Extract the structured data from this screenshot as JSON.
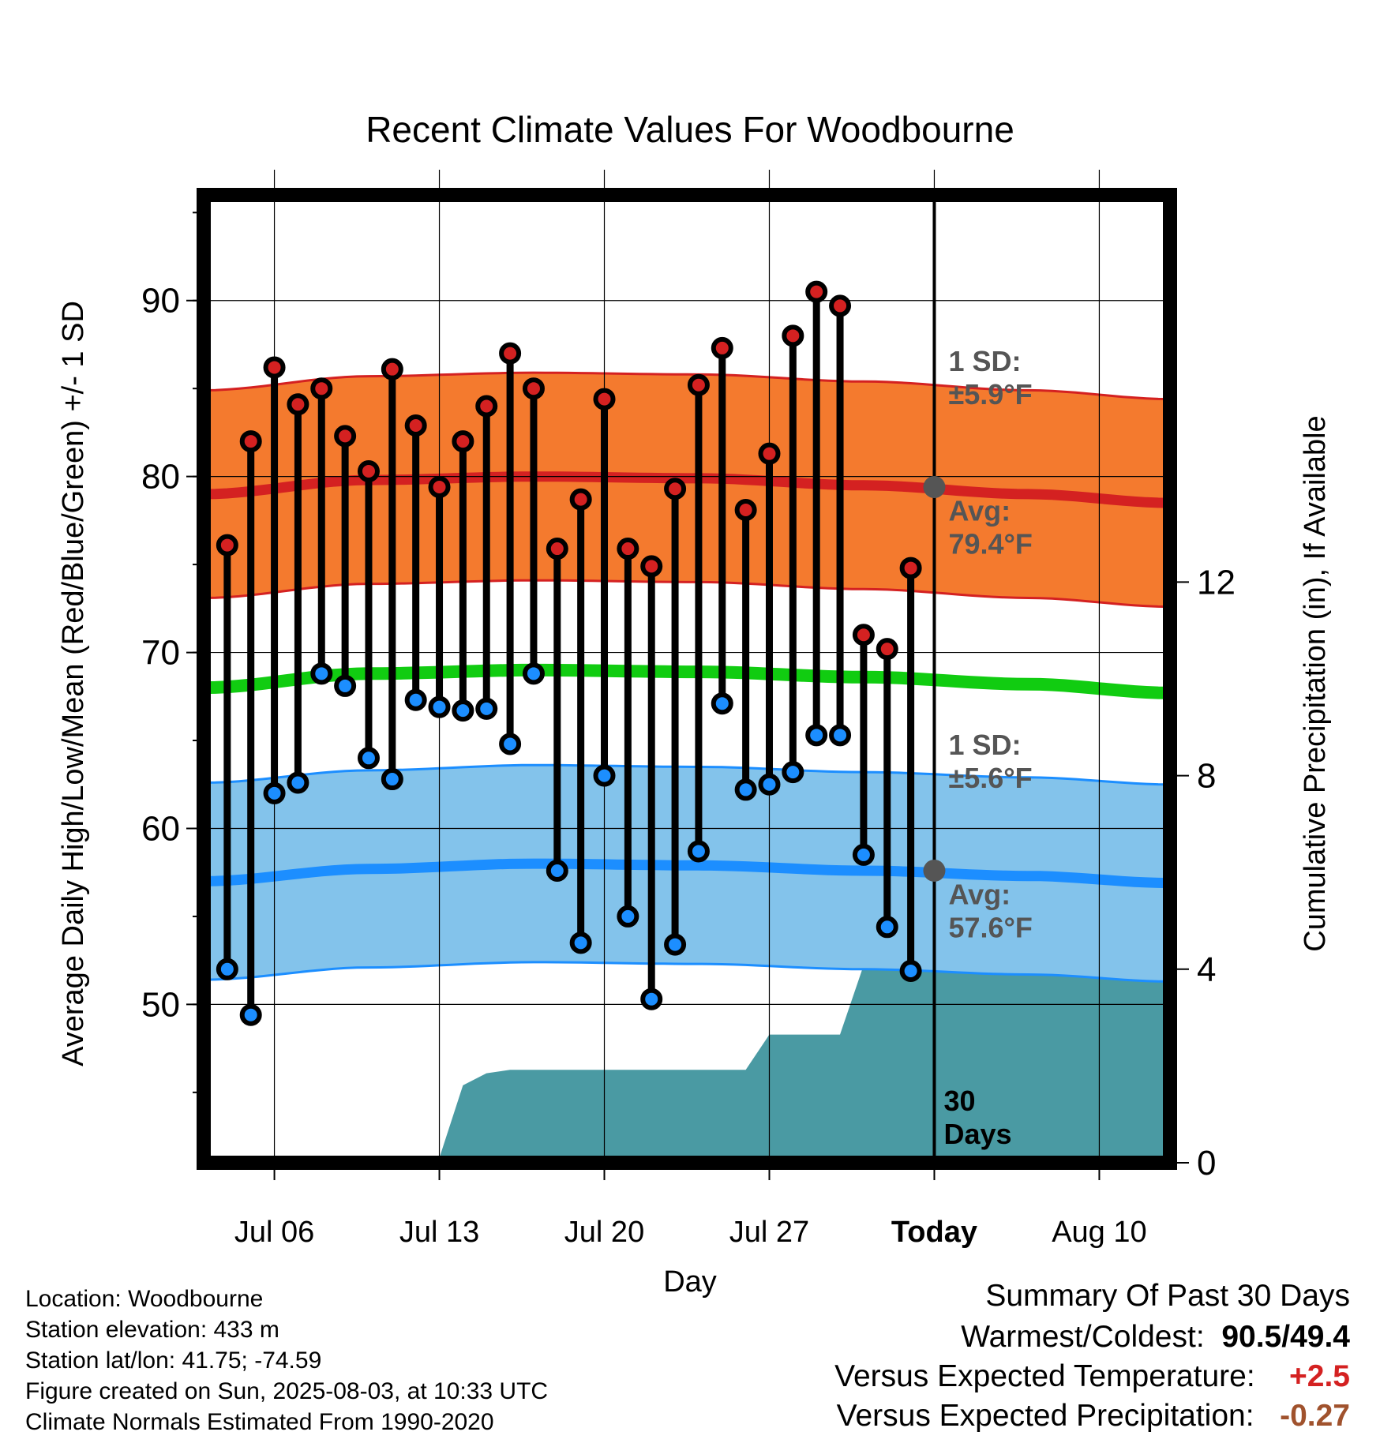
{
  "chart_data": {
    "type": "line",
    "title": "Recent Climate Values For Woodbourne",
    "xlabel": "Day",
    "ylabel": "Average Daily High/Low/Mean (Red/Blue/Green) +/- 1 SD",
    "y2label": "Cumulative Precipitation (in), If Available",
    "ylim": [
      41,
      96
    ],
    "y2lim": [
      0,
      20
    ],
    "yticks": [
      50,
      60,
      70,
      80,
      90
    ],
    "y2ticks": [
      0,
      4,
      8,
      12
    ],
    "x_dates_start": "2025-07-03",
    "x_dates_end": "2025-08-13",
    "xticks": [
      {
        "date": "2025-07-06",
        "label": "Jul 06"
      },
      {
        "date": "2025-07-13",
        "label": "Jul 13"
      },
      {
        "date": "2025-07-20",
        "label": "Jul 20"
      },
      {
        "date": "2025-07-27",
        "label": "Jul 27"
      },
      {
        "date": "2025-08-03",
        "label": "Today"
      },
      {
        "date": "2025-08-10",
        "label": "Aug 10"
      }
    ],
    "today": "2025-08-03",
    "today_label": [
      "30",
      "Days"
    ],
    "grid": true,
    "normals": {
      "dates": [
        "2025-07-03",
        "2025-07-10",
        "2025-07-17",
        "2025-07-24",
        "2025-07-31",
        "2025-08-07",
        "2025-08-13"
      ],
      "high_mean": [
        79.0,
        79.8,
        80.0,
        79.9,
        79.5,
        79.0,
        78.5
      ],
      "high_sd": 5.9,
      "low_mean": [
        57.0,
        57.7,
        58.0,
        57.9,
        57.6,
        57.3,
        56.9
      ],
      "low_sd": 5.6,
      "mean": [
        68.0,
        68.8,
        69.0,
        68.9,
        68.6,
        68.2,
        67.7
      ]
    },
    "annotations": {
      "high_sd_label": [
        "1 SD:",
        "±5.9°F"
      ],
      "high_avg_label": [
        "Avg:",
        "79.4°F"
      ],
      "high_avg_value": 79.4,
      "low_sd_label": [
        "1 SD:",
        "±5.6°F"
      ],
      "low_avg_label": [
        "Avg:",
        "57.6°F"
      ],
      "low_avg_value": 57.6
    },
    "daily": [
      {
        "date": "2025-07-04",
        "high": 76.1,
        "low": 52.0
      },
      {
        "date": "2025-07-05",
        "high": 82.0,
        "low": 49.4
      },
      {
        "date": "2025-07-06",
        "high": 86.2,
        "low": 62.0
      },
      {
        "date": "2025-07-07",
        "high": 84.1,
        "low": 62.6
      },
      {
        "date": "2025-07-08",
        "high": 85.0,
        "low": 68.8
      },
      {
        "date": "2025-07-09",
        "high": 82.3,
        "low": 68.1
      },
      {
        "date": "2025-07-10",
        "high": 80.3,
        "low": 64.0
      },
      {
        "date": "2025-07-11",
        "high": 86.1,
        "low": 62.8
      },
      {
        "date": "2025-07-12",
        "high": 82.9,
        "low": 67.3
      },
      {
        "date": "2025-07-13",
        "high": 79.4,
        "low": 66.9
      },
      {
        "date": "2025-07-14",
        "high": 82.0,
        "low": 66.7
      },
      {
        "date": "2025-07-15",
        "high": 84.0,
        "low": 66.8
      },
      {
        "date": "2025-07-16",
        "high": 87.0,
        "low": 64.8
      },
      {
        "date": "2025-07-17",
        "high": 85.0,
        "low": 68.8
      },
      {
        "date": "2025-07-18",
        "high": 75.9,
        "low": 57.6
      },
      {
        "date": "2025-07-19",
        "high": 78.7,
        "low": 53.5
      },
      {
        "date": "2025-07-20",
        "high": 84.4,
        "low": 63.0
      },
      {
        "date": "2025-07-21",
        "high": 75.9,
        "low": 55.0
      },
      {
        "date": "2025-07-22",
        "high": 74.9,
        "low": 50.3
      },
      {
        "date": "2025-07-23",
        "high": 79.3,
        "low": 53.4
      },
      {
        "date": "2025-07-24",
        "high": 85.2,
        "low": 58.7
      },
      {
        "date": "2025-07-25",
        "high": 87.3,
        "low": 67.1
      },
      {
        "date": "2025-07-26",
        "high": 78.1,
        "low": 62.2
      },
      {
        "date": "2025-07-27",
        "high": 81.3,
        "low": 62.5
      },
      {
        "date": "2025-07-28",
        "high": 88.0,
        "low": 63.2
      },
      {
        "date": "2025-07-29",
        "high": 90.5,
        "low": 65.3
      },
      {
        "date": "2025-07-30",
        "high": 89.7,
        "low": 65.3
      },
      {
        "date": "2025-07-31",
        "high": 71.0,
        "low": 58.5
      },
      {
        "date": "2025-08-01",
        "high": 70.2,
        "low": 54.4
      },
      {
        "date": "2025-08-02",
        "high": 74.8,
        "low": 51.9
      }
    ],
    "precip_cumulative": [
      {
        "date": "2025-07-03",
        "value": 0.0
      },
      {
        "date": "2025-07-10",
        "value": 0.0
      },
      {
        "date": "2025-07-10",
        "value": 0.05
      },
      {
        "date": "2025-07-12",
        "value": 0.08
      },
      {
        "date": "2025-07-13",
        "value": 0.1
      },
      {
        "date": "2025-07-14",
        "value": 1.6
      },
      {
        "date": "2025-07-15",
        "value": 1.85
      },
      {
        "date": "2025-07-16",
        "value": 1.92
      },
      {
        "date": "2025-07-26",
        "value": 1.92
      },
      {
        "date": "2025-07-27",
        "value": 2.65
      },
      {
        "date": "2025-07-30",
        "value": 2.65
      },
      {
        "date": "2025-07-31",
        "value": 4.08
      },
      {
        "date": "2025-08-01",
        "value": 4.15
      },
      {
        "date": "2025-08-13",
        "value": 4.15
      }
    ],
    "colors": {
      "high": "#d42121",
      "high_band": "#f47a2e",
      "low": "#1c8eff",
      "low_band": "#83c3eb",
      "mean": "#11cc11",
      "precip": "#4a9aa3",
      "avg_dot": "#555555"
    }
  },
  "station_info": [
    "Location: Woodbourne",
    "Station elevation: 433 m",
    "Station lat/lon: 41.75; -74.59",
    "Figure created on Sun, 2025-08-03, at 10:33 UTC",
    "Climate Normals Estimated From 1990-2020"
  ],
  "summary": {
    "title": "Summary Of Past 30 Days",
    "warmest_coldest_label": "Warmest/Coldest:",
    "warmest": "90.5",
    "separator": "/",
    "coldest": "49.4",
    "temp_label": "Versus Expected Temperature:",
    "temp_value": "+2.5",
    "temp_color": "#d42121",
    "precip_label": "Versus Expected Precipitation:",
    "precip_value": "-0.27",
    "precip_color": "#a0522d"
  }
}
